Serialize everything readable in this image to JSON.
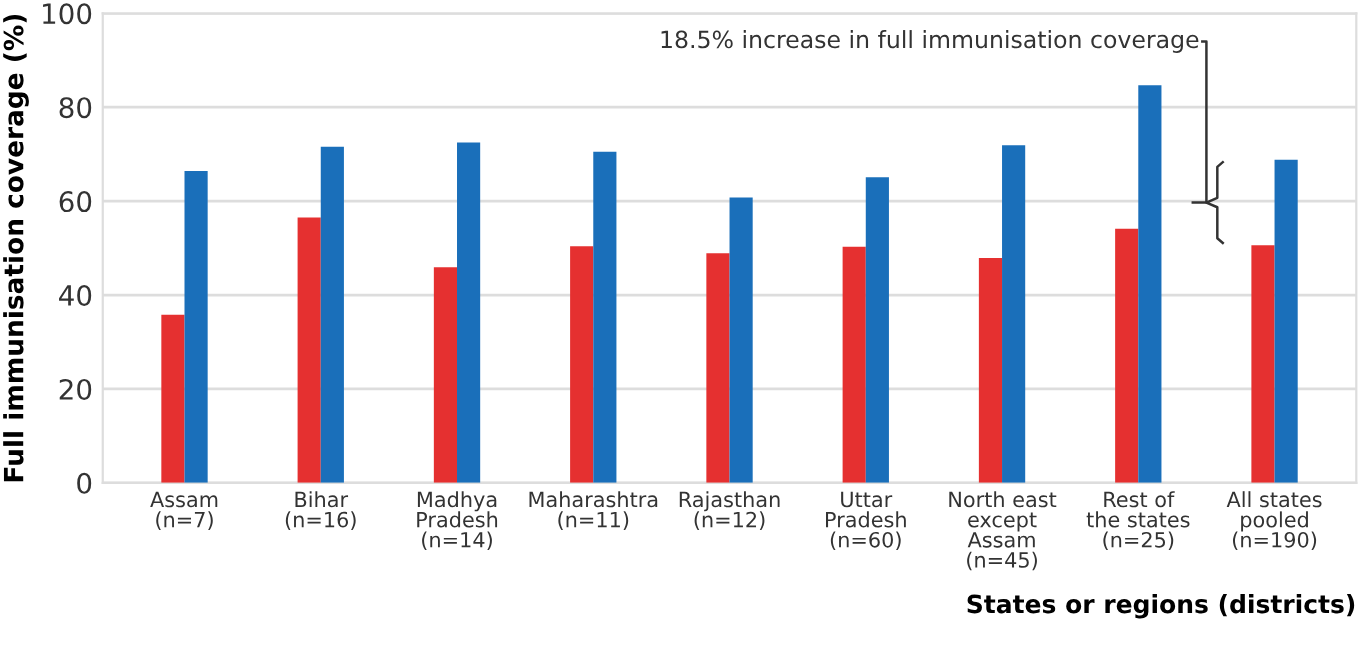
{
  "chart_data": {
    "type": "bar",
    "xlabel": "States or regions (districts)",
    "ylabel": "Full immunisation coverage (%)",
    "categories": [
      "Assam\n(n=7)",
      "Bihar\n(n=16)",
      "Madhya\nPradesh\n(n=14)",
      "Maharashtra\n(n=11)",
      "Rajasthan\n(n=12)",
      "Uttar\nPradesh\n(n=60)",
      "North east\nexcept\nAssam\n(n=45)",
      "Rest of\nthe states\n(n=25)",
      "All states\npooled\n(n=190)"
    ],
    "series": [
      {
        "color": "#e53030",
        "values": [
          35.8,
          56.5,
          45.9,
          50.4,
          48.9,
          50.3,
          47.9,
          54.1,
          50.6
        ]
      },
      {
        "color": "#1a6fba",
        "values": [
          66.4,
          71.6,
          72.5,
          70.5,
          60.8,
          65.1,
          71.9,
          84.7,
          68.8
        ]
      }
    ],
    "ylim": [
      0,
      100
    ],
    "yticks": [
      0,
      20,
      40,
      60,
      80,
      100
    ],
    "grid": "y",
    "annotations": [
      "18.5% increase in full immunisation coverage"
    ]
  }
}
